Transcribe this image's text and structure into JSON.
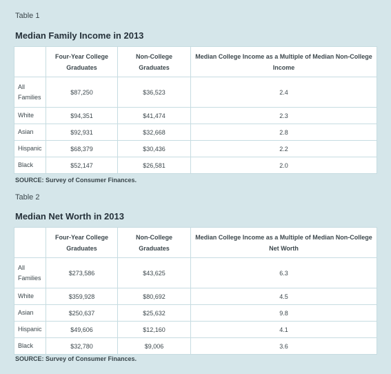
{
  "table1": {
    "label": "Table 1",
    "title": "Median Family Income in 2013",
    "headers": [
      "",
      "Four-Year College Graduates",
      "Non-College Graduates",
      "Median College Income as a Multiple of Median Non-College Income"
    ],
    "rows": [
      [
        "All Families",
        "$87,250",
        "$36,523",
        "2.4"
      ],
      [
        "White",
        "$94,351",
        "$41,474",
        "2.3"
      ],
      [
        "Asian",
        "$92,931",
        "$32,668",
        "2.8"
      ],
      [
        "Hispanic",
        "$68,379",
        "$30,436",
        "2.2"
      ],
      [
        "Black",
        "$52,147",
        "$26,581",
        "2.0"
      ]
    ],
    "source": "SOURCE: Survey of Consumer Finances."
  },
  "table2": {
    "label": "Table 2",
    "title": "Median Net Worth in 2013",
    "headers": [
      "",
      "Four-Year College Graduates",
      "Non-College Graduates",
      "Median College Income as a Multiple of Median Non-College Net Worth"
    ],
    "rows": [
      [
        "All Families",
        "$273,586",
        "$43,625",
        "6.3"
      ],
      [
        "White",
        "$359,928",
        "$80,692",
        "4.5"
      ],
      [
        "Asian",
        "$250,637",
        "$25,632",
        "9.8"
      ],
      [
        "Hispanic",
        "$49,606",
        "$12,160",
        "4.1"
      ],
      [
        "Black",
        "$32,780",
        "$9,006",
        "3.6"
      ]
    ],
    "source": "SOURCE: Survey of Consumer Finances."
  }
}
